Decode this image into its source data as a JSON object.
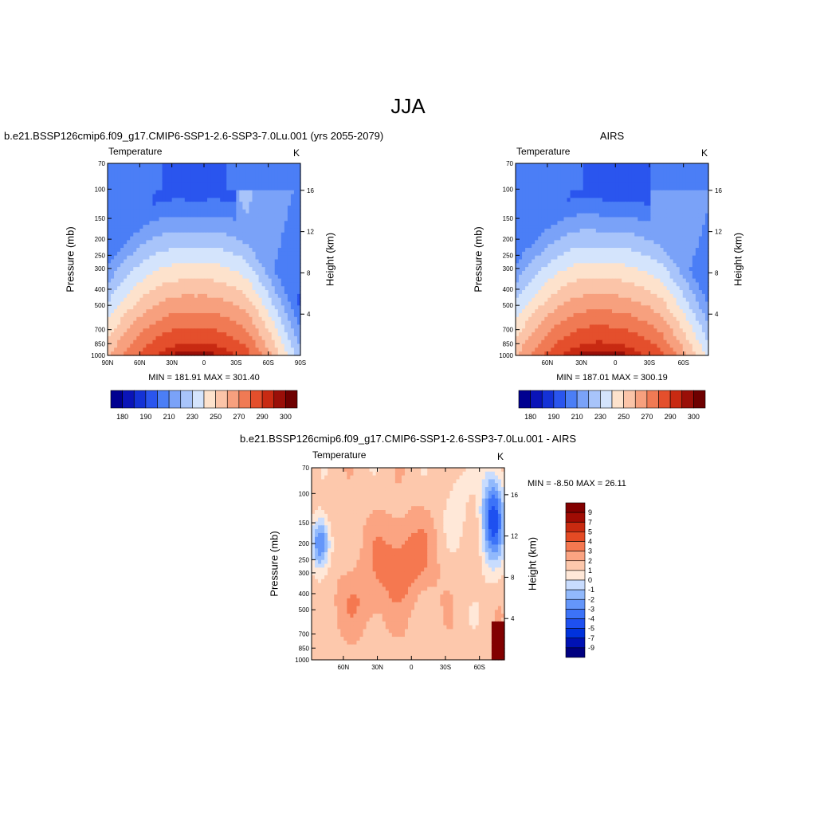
{
  "figure_title": "JJA",
  "colors": {
    "abs_levels": [
      "#000090",
      "#0a14b8",
      "#1432d6",
      "#2a55ee",
      "#4b7ef6",
      "#7aa2f8",
      "#a8c4fa",
      "#d4e4fc",
      "#fde2cc",
      "#fbc4a8",
      "#f7a07e",
      "#f07a54",
      "#e44f2c",
      "#c82a12",
      "#9a0f08",
      "#6e0000"
    ],
    "diff_levels": [
      "#000080",
      "#0012b4",
      "#0032dc",
      "#1e50f0",
      "#3c73f8",
      "#6496fa",
      "#91b9fc",
      "#c8dcfe",
      "#ffe8d8",
      "#fdc8ac",
      "#fba482",
      "#f57850",
      "#e44a24",
      "#c82a10",
      "#a00c04",
      "#820000"
    ]
  },
  "panels": {
    "model": {
      "heading": "b.e21.BSSP126cmip6.f09_g17.CMIP6-SSP1-2.6-SSP3-7.0Lu.001 (yrs 2055-2079)",
      "variable": "Temperature",
      "units": "K",
      "ylabel": "Pressure (mb)",
      "ylabel_right": "Height (km)",
      "stats": "MIN = 181.91  MAX = 301.40"
    },
    "obs": {
      "heading": "AIRS",
      "variable": "Temperature",
      "units": "K",
      "ylabel": "Pressure (mb)",
      "ylabel_right": "Height (km)",
      "stats": "MIN = 187.01  MAX = 300.19"
    },
    "diff": {
      "heading": "b.e21.BSSP126cmip6.f09_g17.CMIP6-SSP1-2.6-SSP3-7.0Lu.001 - AIRS",
      "variable": "Temperature",
      "units": "K",
      "ylabel": "Pressure (mb)",
      "ylabel_right": "Height (km)",
      "stats": "MIN =  -8.50  MAX =  26.11"
    }
  },
  "chart_data": [
    {
      "type": "heatmap",
      "title": "Temperature",
      "units": "K",
      "ylabel": "Pressure (mb)",
      "ylabel_right": "Height (km)",
      "x_ticks": [
        "90N",
        "60N",
        "30N",
        "0",
        "30S",
        "60S",
        "90S"
      ],
      "y_ticks": [
        70,
        100,
        150,
        200,
        250,
        300,
        400,
        500,
        700,
        850,
        1000
      ],
      "y_ticks_right": [
        4,
        8,
        12,
        16
      ],
      "colorbar_labels": [
        "180",
        "190",
        "210",
        "230",
        "250",
        "270",
        "290",
        "300"
      ],
      "min": 181.91,
      "max": 301.4
    },
    {
      "type": "heatmap",
      "title": "Temperature",
      "units": "K",
      "ylabel": "Pressure (mb)",
      "ylabel_right": "Height (km)",
      "x_ticks": [
        "60N",
        "30N",
        "0",
        "30S",
        "60S"
      ],
      "y_ticks": [
        70,
        100,
        150,
        200,
        250,
        300,
        400,
        500,
        700,
        850,
        1000
      ],
      "y_ticks_right": [
        4,
        8,
        12,
        16
      ],
      "colorbar_labels": [
        "180",
        "190",
        "210",
        "230",
        "250",
        "270",
        "290",
        "300"
      ],
      "min": 187.01,
      "max": 300.19
    },
    {
      "type": "heatmap",
      "title": "Temperature",
      "units": "K",
      "ylabel": "Pressure (mb)",
      "ylabel_right": "Height (km)",
      "x_ticks": [
        "60N",
        "30N",
        "0",
        "30S",
        "60S"
      ],
      "y_ticks": [
        70,
        100,
        150,
        200,
        250,
        300,
        400,
        500,
        700,
        850,
        1000
      ],
      "y_ticks_right": [
        4,
        8,
        12,
        16
      ],
      "colorbar_labels": [
        "9",
        "7",
        "5",
        "4",
        "3",
        "2",
        "1",
        "0",
        "-1",
        "-2",
        "-3",
        "-4",
        "-5",
        "-7",
        "-9"
      ],
      "min": -8.5,
      "max": 26.11
    }
  ]
}
